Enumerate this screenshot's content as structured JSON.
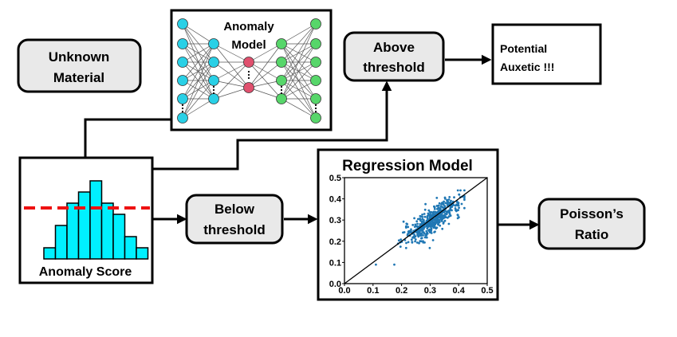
{
  "nodes": {
    "unknown_material": [
      "Unknown",
      "Material"
    ],
    "anomaly_model": [
      "Anomaly",
      "Model"
    ],
    "above_threshold": [
      "Above",
      "threshold"
    ],
    "potential_auxetic": [
      "Potential",
      "Auxetic !!!"
    ],
    "anomaly_score": "Anomaly Score",
    "below_threshold": [
      "Below",
      "threshold"
    ],
    "regression_model": "Regression Model",
    "poissons_ratio": [
      "Poisson’s",
      "Ratio"
    ]
  },
  "colors": {
    "input_nodes": "#29d0e6",
    "hidden_nodes": "#e0506e",
    "output_nodes": "#57d66a",
    "histogram_bars": "#00f0ff",
    "threshold_line": "#ee1111",
    "scatter_points": "#1f77b4",
    "box_fill": "#e9e9e9"
  },
  "histogram": {
    "bar_heights": [
      1,
      3,
      5,
      6,
      7,
      5,
      4,
      2,
      1
    ]
  },
  "chart_data": {
    "type": "scatter",
    "title": "Regression Model",
    "xlim": [
      0.0,
      0.5
    ],
    "ylim": [
      0.0,
      0.5
    ],
    "x_ticks": [
      "0.0",
      "0.1",
      "0.2",
      "0.3",
      "0.4",
      "0.5"
    ],
    "y_ticks": [
      "0.0",
      "0.1",
      "0.2",
      "0.3",
      "0.4",
      "0.5"
    ],
    "diagonal_line": [
      [
        0.0,
        0.0
      ],
      [
        0.5,
        0.5
      ]
    ],
    "point_cloud": {
      "count": 500,
      "x_center": 0.31,
      "y_center": 0.3,
      "x_spread": 0.05,
      "y_spread": 0.03,
      "x_range": [
        0.11,
        0.42
      ],
      "y_range": [
        0.09,
        0.44
      ]
    }
  }
}
